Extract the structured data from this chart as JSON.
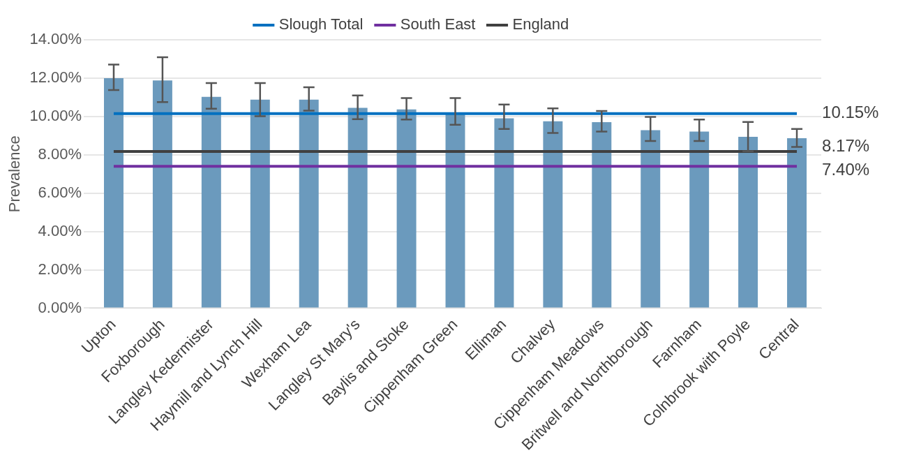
{
  "chart_data": {
    "type": "bar",
    "ylabel": "Prevalence",
    "categories": [
      "Upton",
      "Foxborough",
      "Langley Kedermister",
      "Haymill and Lynch Hill",
      "Wexham Lea",
      "Langley St Mary's",
      "Baylis and Stoke",
      "Cippenham Green",
      "Elliman",
      "Chalvey",
      "Cippenham Meadows",
      "Britwell and Northborough",
      "Farnham",
      "Colnbrook with Poyle",
      "Central"
    ],
    "series": [
      {
        "color": "#6b9abd",
        "values": [
          12.0,
          11.88,
          11.02,
          10.88,
          10.88,
          10.45,
          10.37,
          10.19,
          9.9,
          9.75,
          9.7,
          9.28,
          9.21,
          8.94,
          8.87
        ],
        "errors": [
          [
            11.38,
            12.71
          ],
          [
            10.75,
            13.09
          ],
          [
            10.4,
            11.74
          ],
          [
            10.01,
            11.74
          ],
          [
            10.3,
            11.52
          ],
          [
            9.86,
            11.1
          ],
          [
            9.84,
            10.96
          ],
          [
            9.57,
            10.96
          ],
          [
            9.35,
            10.62
          ],
          [
            9.14,
            10.42
          ],
          [
            9.21,
            10.29
          ],
          [
            8.72,
            9.98
          ],
          [
            8.72,
            9.84
          ],
          [
            8.18,
            9.71
          ],
          [
            8.41,
            9.35
          ]
        ]
      },
      {
        "type": "line",
        "name": "Slough Total",
        "color": "#0070c0",
        "values": [
          10.15,
          10.15,
          10.15,
          10.15,
          10.15,
          10.15,
          10.15,
          10.15,
          10.15,
          10.15,
          10.15,
          10.15,
          10.15,
          10.15,
          10.15
        ],
        "value_labels": [
          null,
          null,
          null,
          null,
          null,
          null,
          null,
          null,
          null,
          null,
          null,
          null,
          null,
          null,
          "10.15%"
        ]
      },
      {
        "type": "line",
        "name": "South East",
        "color": "#7030a0",
        "values": [
          7.4,
          7.4,
          7.4,
          7.4,
          7.4,
          7.4,
          7.4,
          7.4,
          7.4,
          7.4,
          7.4,
          7.4,
          7.4,
          7.4,
          7.4
        ],
        "value_labels": [
          null,
          null,
          null,
          null,
          null,
          null,
          null,
          null,
          null,
          null,
          null,
          null,
          null,
          null,
          "7.40%"
        ]
      },
      {
        "type": "line",
        "name": "England",
        "color": "#404040",
        "values": [
          8.17,
          8.17,
          8.17,
          8.17,
          8.17,
          8.17,
          8.17,
          8.17,
          8.17,
          8.17,
          8.17,
          8.17,
          8.17,
          8.17,
          8.17
        ],
        "value_labels": [
          null,
          null,
          null,
          null,
          null,
          null,
          null,
          null,
          null,
          null,
          null,
          null,
          null,
          null,
          "8.17%"
        ]
      }
    ],
    "ylim": [
      0,
      14
    ],
    "yticks": [
      {
        "value": 0,
        "label": "0.00%"
      },
      {
        "value": 2,
        "label": "2.00%"
      },
      {
        "value": 4,
        "label": "4.00%"
      },
      {
        "value": 6,
        "label": "6.00%"
      },
      {
        "value": 8,
        "label": "8.00%"
      },
      {
        "value": 10,
        "label": "10.00%"
      },
      {
        "value": 12,
        "label": "12.00%"
      },
      {
        "value": 14,
        "label": "14.00%"
      }
    ],
    "grid": "y",
    "legend": "top",
    "marker": "none"
  }
}
